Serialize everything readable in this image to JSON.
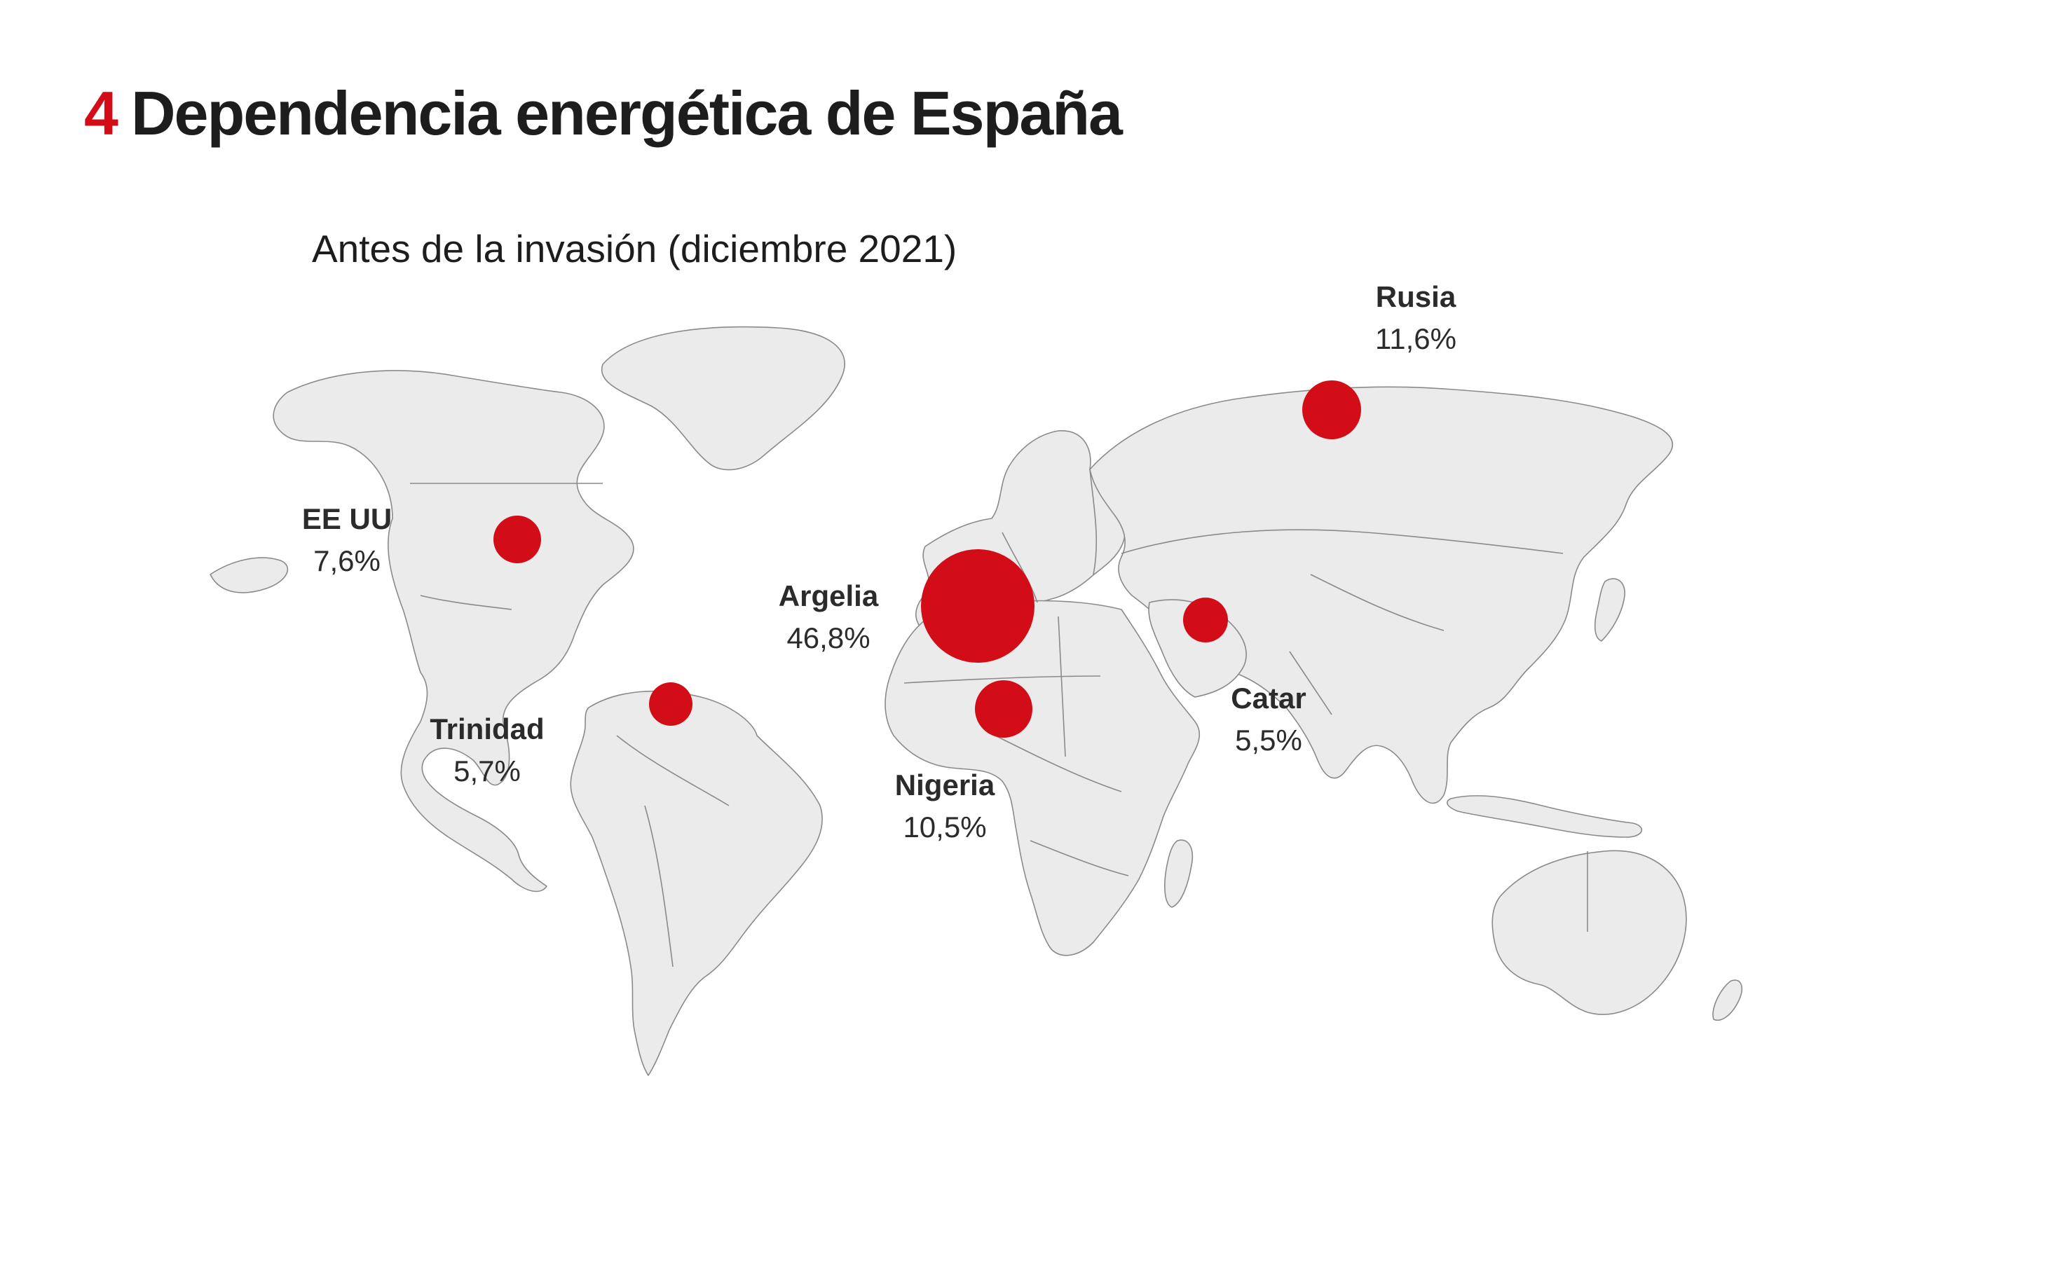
{
  "header": {
    "number": "4",
    "title": "Dependencia energética de España"
  },
  "subtitle": "Antes de la invasión (diciembre 2021)",
  "colors": {
    "accent": "#d20d17",
    "land": "#ebebeb",
    "border": "#8a8a8a",
    "text": "#2b2b2b"
  },
  "suppliers": [
    {
      "id": "rusia",
      "name": "Rusia",
      "value": "11,6%",
      "share": 11.6
    },
    {
      "id": "eeuu",
      "name": "EE UU",
      "value": "7,6%",
      "share": 7.6
    },
    {
      "id": "argelia",
      "name": "Argelia",
      "value": "46,8%",
      "share": 46.8
    },
    {
      "id": "catar",
      "name": "Catar",
      "value": "5,5%",
      "share": 5.5
    },
    {
      "id": "trinidad",
      "name": "Trinidad",
      "value": "5,7%",
      "share": 5.7
    },
    {
      "id": "nigeria",
      "name": "Nigeria",
      "value": "10,5%",
      "share": 10.5
    }
  ]
}
